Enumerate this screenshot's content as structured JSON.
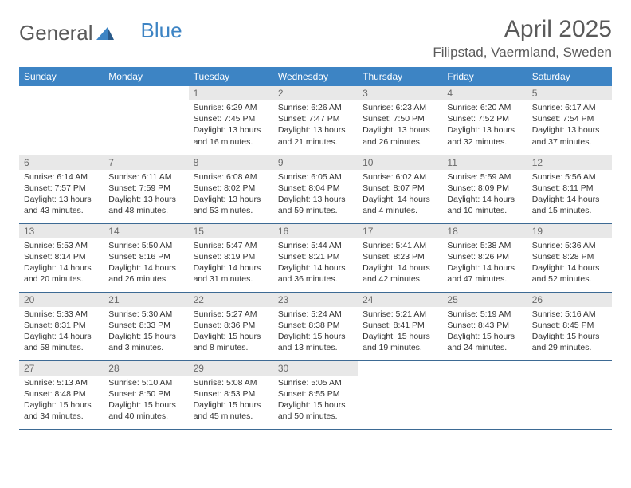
{
  "brand": {
    "part1": "General",
    "part2": "Blue"
  },
  "title": "April 2025",
  "location": "Filipstad, Vaermland, Sweden",
  "colors": {
    "header_bg": "#3d84c4",
    "header_text": "#ffffff",
    "daynum_bg": "#e8e8e8",
    "daynum_text": "#6a6a6a",
    "border": "#3d6a94",
    "body_text": "#333333",
    "title_text": "#5a5a5a"
  },
  "day_headers": [
    "Sunday",
    "Monday",
    "Tuesday",
    "Wednesday",
    "Thursday",
    "Friday",
    "Saturday"
  ],
  "weeks": [
    [
      null,
      null,
      {
        "n": "1",
        "sr": "6:29 AM",
        "ss": "7:45 PM",
        "dl": "13 hours and 16 minutes."
      },
      {
        "n": "2",
        "sr": "6:26 AM",
        "ss": "7:47 PM",
        "dl": "13 hours and 21 minutes."
      },
      {
        "n": "3",
        "sr": "6:23 AM",
        "ss": "7:50 PM",
        "dl": "13 hours and 26 minutes."
      },
      {
        "n": "4",
        "sr": "6:20 AM",
        "ss": "7:52 PM",
        "dl": "13 hours and 32 minutes."
      },
      {
        "n": "5",
        "sr": "6:17 AM",
        "ss": "7:54 PM",
        "dl": "13 hours and 37 minutes."
      }
    ],
    [
      {
        "n": "6",
        "sr": "6:14 AM",
        "ss": "7:57 PM",
        "dl": "13 hours and 43 minutes."
      },
      {
        "n": "7",
        "sr": "6:11 AM",
        "ss": "7:59 PM",
        "dl": "13 hours and 48 minutes."
      },
      {
        "n": "8",
        "sr": "6:08 AM",
        "ss": "8:02 PM",
        "dl": "13 hours and 53 minutes."
      },
      {
        "n": "9",
        "sr": "6:05 AM",
        "ss": "8:04 PM",
        "dl": "13 hours and 59 minutes."
      },
      {
        "n": "10",
        "sr": "6:02 AM",
        "ss": "8:07 PM",
        "dl": "14 hours and 4 minutes."
      },
      {
        "n": "11",
        "sr": "5:59 AM",
        "ss": "8:09 PM",
        "dl": "14 hours and 10 minutes."
      },
      {
        "n": "12",
        "sr": "5:56 AM",
        "ss": "8:11 PM",
        "dl": "14 hours and 15 minutes."
      }
    ],
    [
      {
        "n": "13",
        "sr": "5:53 AM",
        "ss": "8:14 PM",
        "dl": "14 hours and 20 minutes."
      },
      {
        "n": "14",
        "sr": "5:50 AM",
        "ss": "8:16 PM",
        "dl": "14 hours and 26 minutes."
      },
      {
        "n": "15",
        "sr": "5:47 AM",
        "ss": "8:19 PM",
        "dl": "14 hours and 31 minutes."
      },
      {
        "n": "16",
        "sr": "5:44 AM",
        "ss": "8:21 PM",
        "dl": "14 hours and 36 minutes."
      },
      {
        "n": "17",
        "sr": "5:41 AM",
        "ss": "8:23 PM",
        "dl": "14 hours and 42 minutes."
      },
      {
        "n": "18",
        "sr": "5:38 AM",
        "ss": "8:26 PM",
        "dl": "14 hours and 47 minutes."
      },
      {
        "n": "19",
        "sr": "5:36 AM",
        "ss": "8:28 PM",
        "dl": "14 hours and 52 minutes."
      }
    ],
    [
      {
        "n": "20",
        "sr": "5:33 AM",
        "ss": "8:31 PM",
        "dl": "14 hours and 58 minutes."
      },
      {
        "n": "21",
        "sr": "5:30 AM",
        "ss": "8:33 PM",
        "dl": "15 hours and 3 minutes."
      },
      {
        "n": "22",
        "sr": "5:27 AM",
        "ss": "8:36 PM",
        "dl": "15 hours and 8 minutes."
      },
      {
        "n": "23",
        "sr": "5:24 AM",
        "ss": "8:38 PM",
        "dl": "15 hours and 13 minutes."
      },
      {
        "n": "24",
        "sr": "5:21 AM",
        "ss": "8:41 PM",
        "dl": "15 hours and 19 minutes."
      },
      {
        "n": "25",
        "sr": "5:19 AM",
        "ss": "8:43 PM",
        "dl": "15 hours and 24 minutes."
      },
      {
        "n": "26",
        "sr": "5:16 AM",
        "ss": "8:45 PM",
        "dl": "15 hours and 29 minutes."
      }
    ],
    [
      {
        "n": "27",
        "sr": "5:13 AM",
        "ss": "8:48 PM",
        "dl": "15 hours and 34 minutes."
      },
      {
        "n": "28",
        "sr": "5:10 AM",
        "ss": "8:50 PM",
        "dl": "15 hours and 40 minutes."
      },
      {
        "n": "29",
        "sr": "5:08 AM",
        "ss": "8:53 PM",
        "dl": "15 hours and 45 minutes."
      },
      {
        "n": "30",
        "sr": "5:05 AM",
        "ss": "8:55 PM",
        "dl": "15 hours and 50 minutes."
      },
      null,
      null,
      null
    ]
  ],
  "labels": {
    "sunrise": "Sunrise:",
    "sunset": "Sunset:",
    "daylight": "Daylight:"
  }
}
